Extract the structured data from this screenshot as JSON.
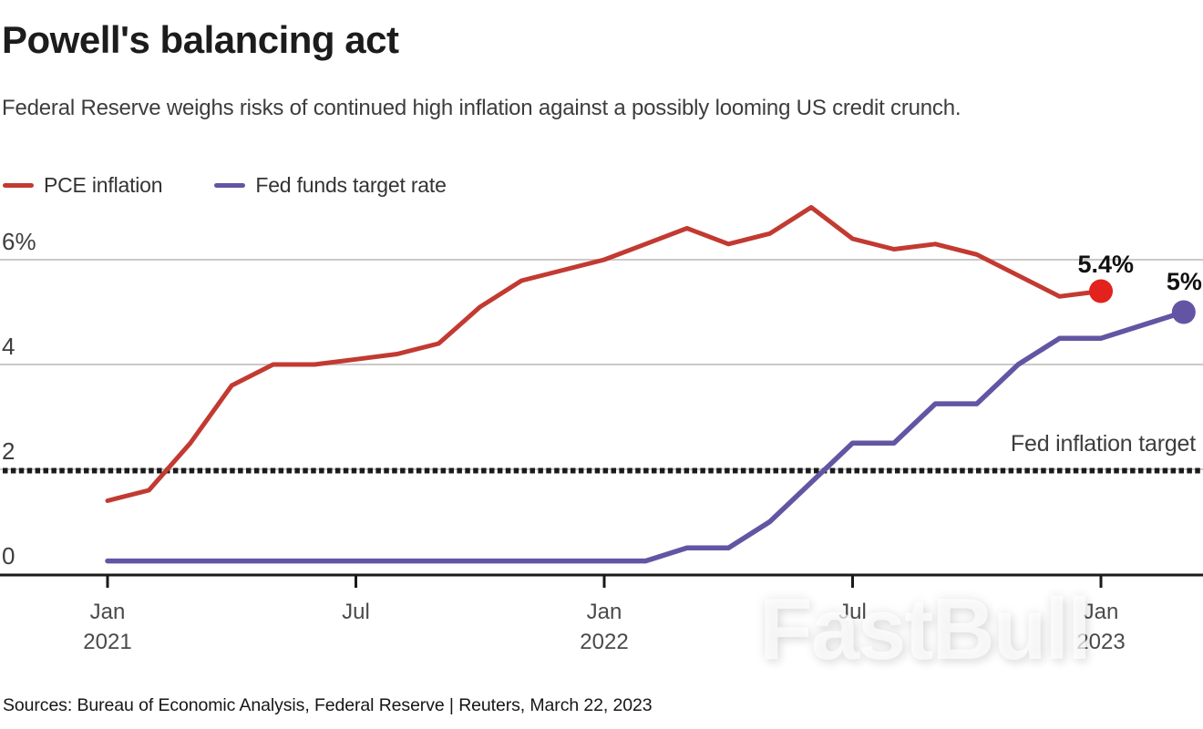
{
  "header": {
    "title": "Powell's balancing act",
    "subtitle": "Federal Reserve weighs risks of continued high inflation against a possibly looming US credit crunch."
  },
  "legend": {
    "items": [
      {
        "label": "PCE inflation",
        "color": "#c23a31"
      },
      {
        "label": "Fed funds target rate",
        "color": "#6355a3"
      }
    ]
  },
  "chart_data": {
    "type": "line",
    "frequency": "monthly",
    "x_labels": [
      "Jan 2021",
      "Feb 2021",
      "Mar 2021",
      "Apr 2021",
      "May 2021",
      "Jun 2021",
      "Jul 2021",
      "Aug 2021",
      "Sep 2021",
      "Oct 2021",
      "Nov 2021",
      "Dec 2021",
      "Jan 2022",
      "Feb 2022",
      "Mar 2022",
      "Apr 2022",
      "May 2022",
      "Jun 2022",
      "Jul 2022",
      "Aug 2022",
      "Sep 2022",
      "Oct 2022",
      "Nov 2022",
      "Dec 2022",
      "Jan 2023",
      "Feb 2023",
      "Mar 2023"
    ],
    "series": [
      {
        "name": "PCE inflation",
        "color": "#c23a31",
        "dot_color": "#e3211d",
        "end_label": "5.4%",
        "values": [
          1.4,
          1.6,
          2.5,
          3.6,
          4.0,
          4.0,
          4.1,
          4.2,
          4.4,
          5.1,
          5.6,
          5.8,
          6.0,
          6.3,
          6.6,
          6.3,
          6.5,
          7.0,
          6.4,
          6.2,
          6.3,
          6.1,
          5.7,
          5.3,
          5.4
        ]
      },
      {
        "name": "Fed funds target rate",
        "color": "#6355a3",
        "dot_color": "#6355a3",
        "end_label": "5%",
        "values": [
          0.25,
          0.25,
          0.25,
          0.25,
          0.25,
          0.25,
          0.25,
          0.25,
          0.25,
          0.25,
          0.25,
          0.25,
          0.25,
          0.25,
          0.5,
          0.5,
          1.0,
          1.75,
          2.5,
          2.5,
          3.25,
          3.25,
          4.0,
          4.5,
          4.5,
          4.75,
          5.0
        ]
      }
    ],
    "y_axis": {
      "ticks": [
        {
          "label": "6%",
          "value": 6
        },
        {
          "label": "4",
          "value": 4
        },
        {
          "label": "2",
          "value": 2
        },
        {
          "label": "0",
          "value": 0
        }
      ],
      "range": [
        0,
        7.2
      ],
      "grid": true,
      "grid_color": "#c9c9c9"
    },
    "x_axis": {
      "ticks": [
        {
          "line1": "Jan",
          "line2": "2021",
          "month": 0
        },
        {
          "line1": "Jul",
          "line2": "",
          "month": 6
        },
        {
          "line1": "Jan",
          "line2": "2022",
          "month": 12
        },
        {
          "line1": "Jul",
          "line2": "",
          "month": 18
        },
        {
          "line1": "Jan",
          "line2": "2023",
          "month": 24
        }
      ]
    },
    "target_line": {
      "value": 2,
      "label": "Fed inflation target",
      "style": "dotted",
      "color": "#1b1b1b"
    },
    "legend_position": "top-left"
  },
  "source": "Sources: Bureau of Economic Analysis, Federal Reserve | Reuters, March 22, 2023",
  "watermark": "FastBull"
}
